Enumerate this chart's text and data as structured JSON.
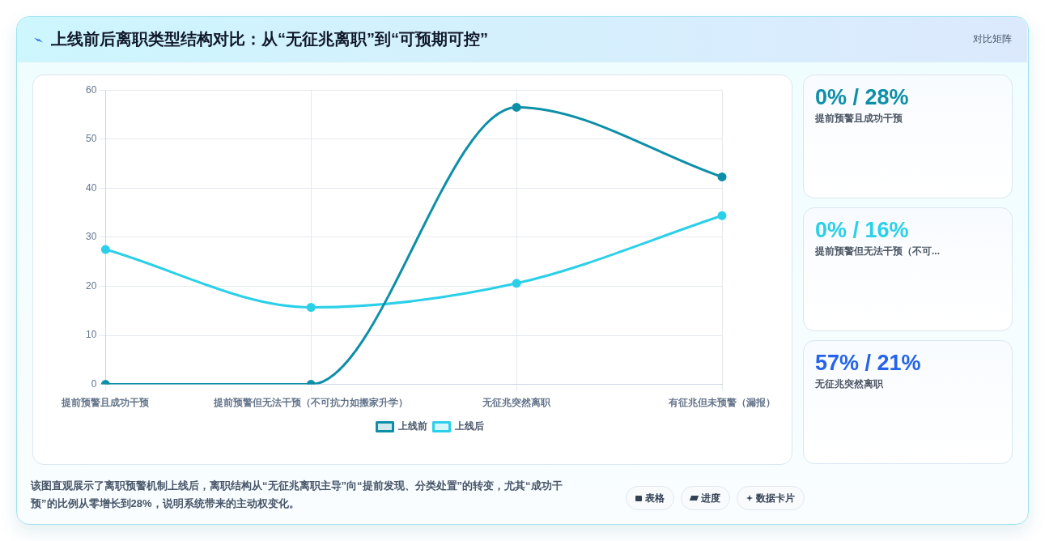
{
  "chart_data": [
    {
      "type": "line",
      "title": "上线前后离职类型结构对比：从“无征兆离职”到“可预期可控”",
      "categories": [
        "提前预警且成功干预",
        "提前预警但无法干预（不可抗力如搬家升学）",
        "无征兆突然离职",
        "有征兆但未预警（漏报）"
      ],
      "series": [
        {
          "name": "上线前",
          "color": "#0e8fa8",
          "values": [
            0,
            0,
            56.5,
            42.3
          ]
        },
        {
          "name": "上线后",
          "color": "#2bd0e8",
          "values": [
            27.5,
            15.7,
            20.6,
            34.4
          ]
        }
      ],
      "ylim": [
        0,
        60
      ],
      "yticks": [
        0,
        10,
        20,
        30,
        40,
        50,
        60
      ],
      "grid": true,
      "legend": "bottom",
      "marker": "circle",
      "line_style": "solid",
      "annotations": [
        "该图直观展示了离职预警机制上线后，离职结构从“无征兆离职主导”向“提前发现、分类处置”的转变，尤其“成功干预”的比例从零增长到28%，说明系统带来的主动权变化。",
        "表格",
        "进度",
        "数据卡片"
      ]
    },
    {
      "type": "other",
      "subtitle": "对比矩阵",
      "categories": [
        "提前预警且成功干预",
        "提前预警但无法干预（不可...",
        "无征兆突然离职"
      ],
      "value_labels": [
        "0% / 28%",
        "0% / 16%",
        "57% / 21%"
      ]
    }
  ]
}
